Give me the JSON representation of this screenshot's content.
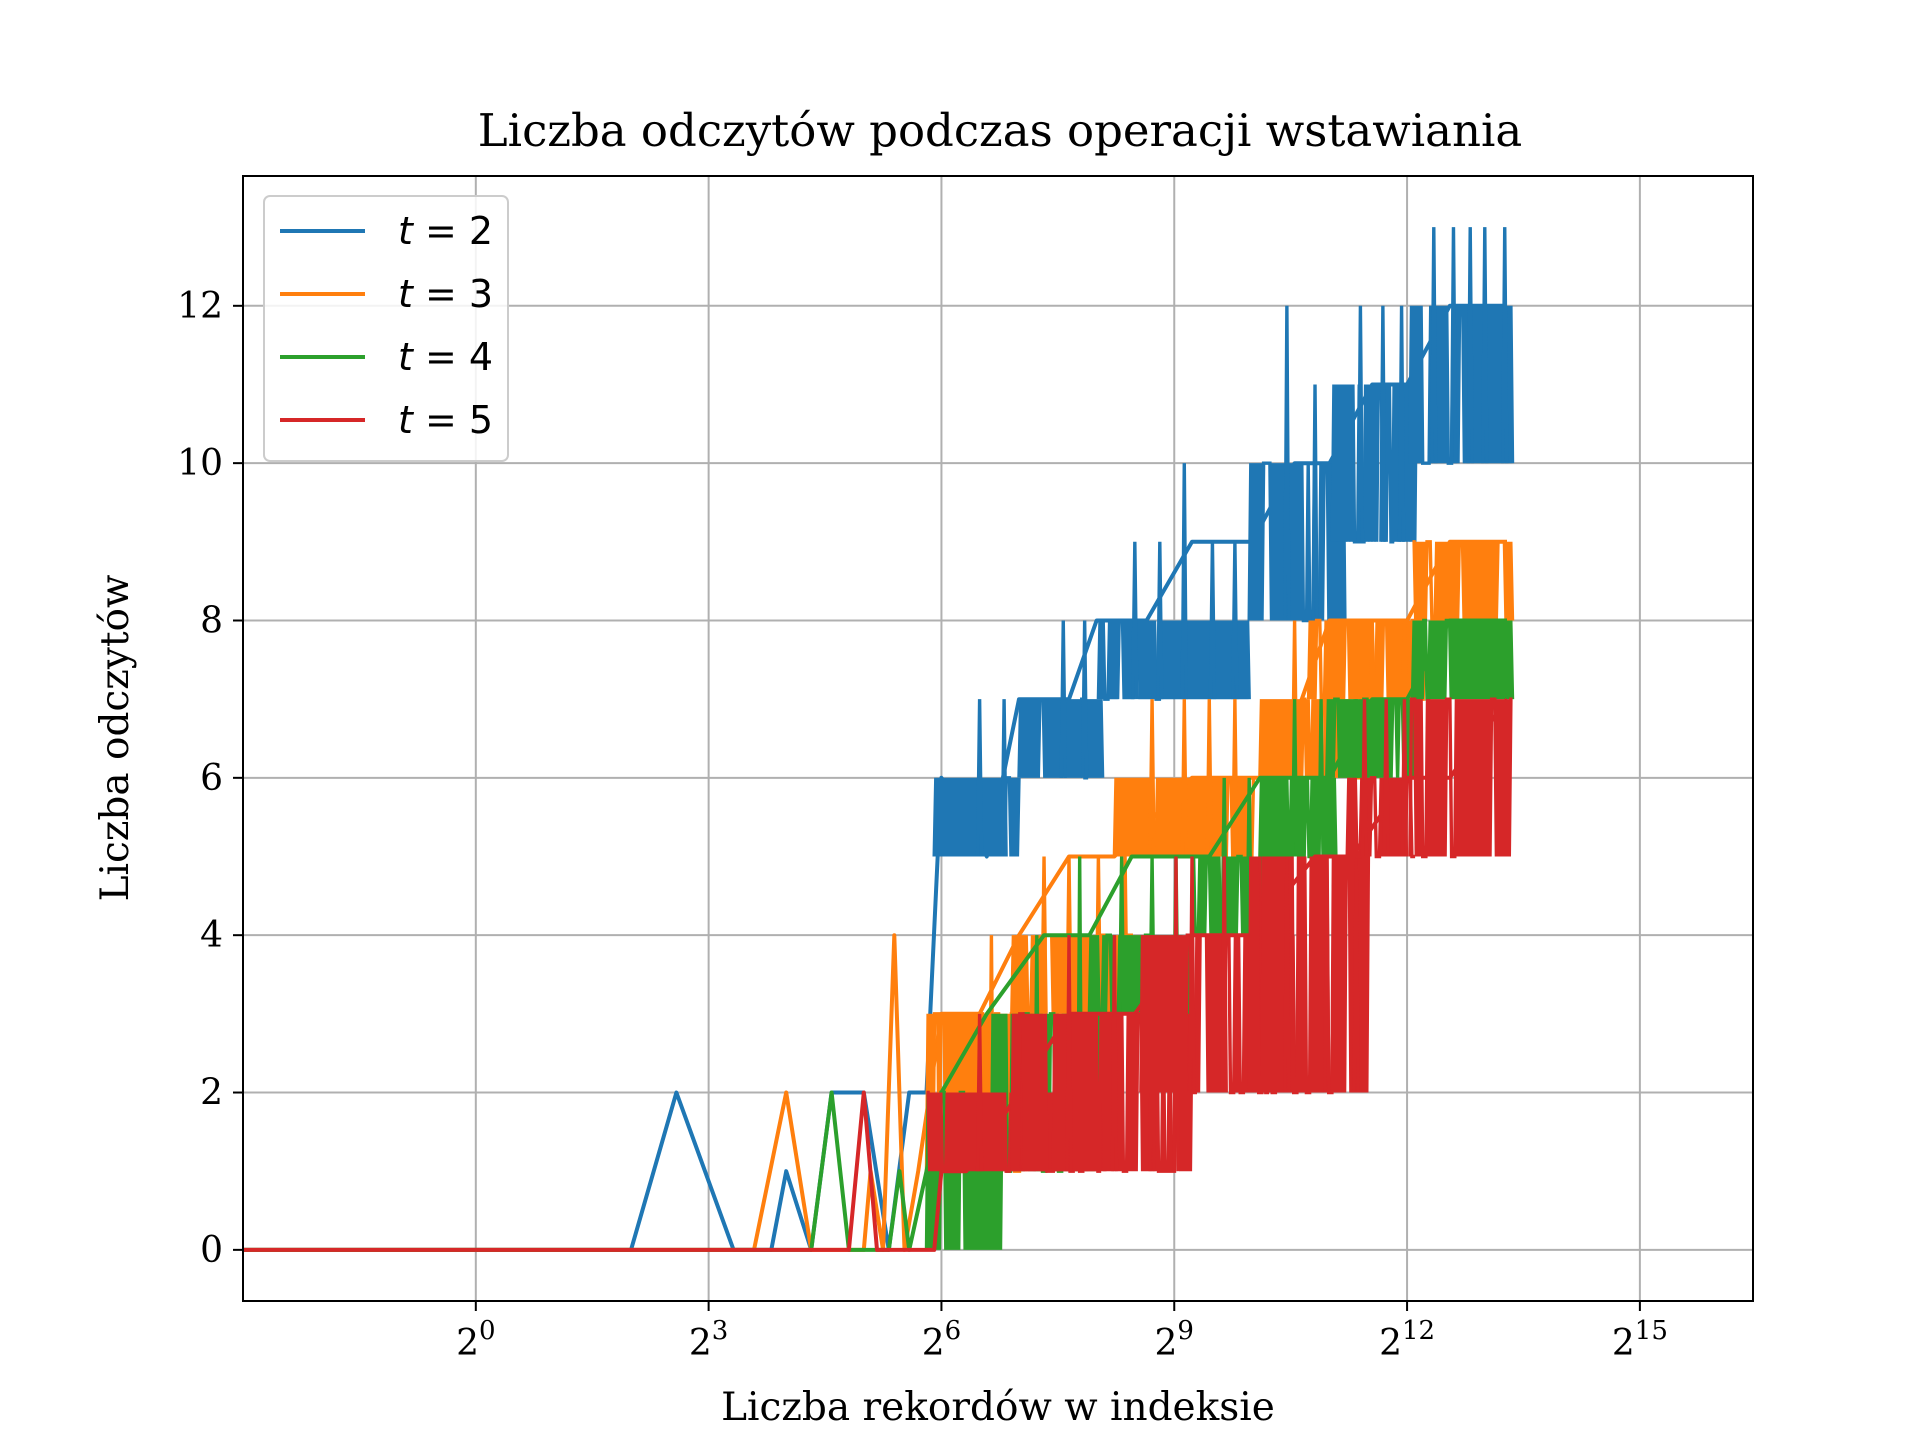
{
  "chart_data": {
    "type": "line",
    "title": "Liczba odczytów podczas operacji wstawiania",
    "xlabel": "Liczba rekordów w indeksie",
    "ylabel": "Liczba odczytów",
    "xscale": "log2",
    "xlim": [
      0.125,
      90000
    ],
    "ylim": [
      -0.65,
      13.65
    ],
    "x_ticks": [
      {
        "value": 1,
        "base": "2",
        "exp": "0"
      },
      {
        "value": 8,
        "base": "2",
        "exp": "3"
      },
      {
        "value": 64,
        "base": "2",
        "exp": "6"
      },
      {
        "value": 512,
        "base": "2",
        "exp": "9"
      },
      {
        "value": 4096,
        "base": "2",
        "exp": "12"
      },
      {
        "value": 32768,
        "base": "2",
        "exp": "15"
      }
    ],
    "y_ticks": [
      0,
      2,
      4,
      6,
      8,
      10,
      12
    ],
    "grid": true,
    "legend_position": "top-left",
    "series": [
      {
        "name": "t = 2",
        "label_var": "t",
        "label_value": "2",
        "color": "#1f77b4",
        "points": [
          [
            0.125,
            0
          ],
          [
            4,
            0
          ],
          [
            6,
            2
          ],
          [
            10,
            0
          ],
          [
            14,
            0
          ],
          [
            16,
            1
          ],
          [
            20,
            0
          ],
          [
            24,
            2
          ],
          [
            32,
            2
          ],
          [
            40,
            0
          ],
          [
            48,
            2
          ],
          [
            56,
            2
          ],
          [
            64,
            6
          ],
          [
            96,
            5
          ],
          [
            128,
            7
          ],
          [
            200,
            7
          ],
          [
            256,
            8
          ],
          [
            400,
            8
          ],
          [
            600,
            9
          ],
          [
            1024,
            9
          ],
          [
            1500,
            10
          ],
          [
            2048,
            10
          ],
          [
            3000,
            11
          ],
          [
            4096,
            11
          ],
          [
            6000,
            12
          ],
          [
            10000,
            12
          ]
        ],
        "bands": [
          {
            "x0": 60,
            "x1": 128,
            "lo": 5,
            "hi": 6,
            "spikes": [
              [
                90,
                7
              ],
              [
                112,
                7
              ]
            ]
          },
          {
            "x0": 128,
            "x1": 270,
            "lo": 6,
            "hi": 7,
            "spikes": [
              [
                190,
                8
              ],
              [
                230,
                8
              ]
            ]
          },
          {
            "x0": 260,
            "x1": 1000,
            "lo": 7,
            "hi": 8,
            "spikes": [
              [
                360,
                9
              ],
              [
                450,
                9
              ],
              [
                560,
                10
              ],
              [
                720,
                9
              ],
              [
                880,
                9
              ]
            ]
          },
          {
            "x0": 1000,
            "x1": 2350,
            "lo": 8,
            "hi": 10,
            "spikes": [
              [
                1400,
                12
              ],
              [
                1800,
                11
              ]
            ]
          },
          {
            "x0": 2100,
            "x1": 4450,
            "lo": 9,
            "hi": 11,
            "spikes": [
              [
                2700,
                12
              ],
              [
                3300,
                12
              ],
              [
                3900,
                12
              ]
            ]
          },
          {
            "x0": 4200,
            "x1": 10500,
            "lo": 10,
            "hi": 12,
            "spikes": [
              [
                5200,
                13
              ],
              [
                6200,
                13
              ],
              [
                7200,
                13
              ],
              [
                8200,
                13
              ],
              [
                9800,
                13
              ]
            ]
          }
        ]
      },
      {
        "name": "t = 3",
        "label_var": "t",
        "label_value": "3",
        "color": "#ff7f0e",
        "points": [
          [
            0.125,
            0
          ],
          [
            12,
            0
          ],
          [
            16,
            2
          ],
          [
            20,
            0
          ],
          [
            32,
            0
          ],
          [
            34,
            1
          ],
          [
            38,
            0
          ],
          [
            42,
            4
          ],
          [
            46,
            0
          ],
          [
            52,
            1
          ],
          [
            64,
            3
          ],
          [
            90,
            3
          ],
          [
            128,
            4
          ],
          [
            200,
            5
          ],
          [
            300,
            5
          ],
          [
            600,
            6
          ],
          [
            1100,
            6
          ],
          [
            1600,
            7
          ],
          [
            2048,
            8
          ],
          [
            4096,
            8
          ],
          [
            6000,
            9
          ],
          [
            10000,
            9
          ]
        ],
        "bands": [
          {
            "x0": 56,
            "x1": 140,
            "lo": 1,
            "hi": 3,
            "spikes": [
              [
                100,
                4
              ],
              [
                125,
                4
              ]
            ]
          },
          {
            "x0": 120,
            "x1": 380,
            "lo": 3,
            "hi": 4,
            "spikes": [
              [
                160,
                5
              ],
              [
                200,
                5
              ],
              [
                260,
                5
              ],
              [
                330,
                5
              ]
            ]
          },
          {
            "x0": 300,
            "x1": 1100,
            "lo": 5,
            "hi": 6,
            "spikes": [
              [
                420,
                7
              ],
              [
                560,
                7
              ],
              [
                700,
                7
              ],
              [
                880,
                7
              ]
            ]
          },
          {
            "x0": 1100,
            "x1": 2800,
            "lo": 6,
            "hi": 7,
            "spikes": [
              [
                1500,
                8
              ],
              [
                2000,
                8
              ]
            ]
          },
          {
            "x0": 1700,
            "x1": 4800,
            "lo": 7,
            "hi": 8,
            "spikes": [
              [
                3000,
                8
              ],
              [
                4000,
                8
              ]
            ]
          },
          {
            "x0": 4300,
            "x1": 10500,
            "lo": 8,
            "hi": 9,
            "spikes": []
          }
        ]
      },
      {
        "name": "t = 4",
        "label_var": "t",
        "label_value": "4",
        "color": "#2ca02c",
        "points": [
          [
            0.125,
            0
          ],
          [
            20,
            0
          ],
          [
            24,
            2
          ],
          [
            28,
            0
          ],
          [
            40,
            0
          ],
          [
            44,
            1
          ],
          [
            48,
            0
          ],
          [
            56,
            1
          ],
          [
            64,
            2
          ],
          [
            96,
            3
          ],
          [
            160,
            4
          ],
          [
            240,
            4
          ],
          [
            350,
            5
          ],
          [
            700,
            5
          ],
          [
            1100,
            6
          ],
          [
            2048,
            6
          ],
          [
            3000,
            7
          ],
          [
            4096,
            7
          ],
          [
            6000,
            8
          ],
          [
            10000,
            8
          ]
        ],
        "bands": [
          {
            "x0": 56,
            "x1": 110,
            "lo": 0,
            "hi": 2,
            "spikes": []
          },
          {
            "x0": 100,
            "x1": 260,
            "lo": 1,
            "hi": 3,
            "spikes": [
              [
                150,
                4
              ],
              [
                220,
                5
              ]
            ]
          },
          {
            "x0": 240,
            "x1": 600,
            "lo": 3,
            "hi": 4,
            "spikes": [
              [
                320,
                5
              ],
              [
                420,
                5
              ],
              [
                520,
                5
              ]
            ]
          },
          {
            "x0": 600,
            "x1": 1150,
            "lo": 4,
            "hi": 5,
            "spikes": [
              [
                800,
                6
              ],
              [
                1000,
                6
              ]
            ]
          },
          {
            "x0": 1100,
            "x1": 2200,
            "lo": 5,
            "hi": 6,
            "spikes": [
              [
                1500,
                7
              ],
              [
                1900,
                7
              ]
            ]
          },
          {
            "x0": 2000,
            "x1": 4600,
            "lo": 6,
            "hi": 7,
            "spikes": [
              [
                2600,
                7
              ],
              [
                3400,
                7
              ]
            ]
          },
          {
            "x0": 4300,
            "x1": 10500,
            "lo": 7,
            "hi": 8,
            "spikes": []
          }
        ]
      },
      {
        "name": "t = 5",
        "label_var": "t",
        "label_value": "5",
        "color": "#d62728",
        "points": [
          [
            0.125,
            0
          ],
          [
            28,
            0
          ],
          [
            32,
            2
          ],
          [
            36,
            0
          ],
          [
            60,
            0
          ],
          [
            64,
            1
          ],
          [
            80,
            1
          ],
          [
            128,
            2
          ],
          [
            200,
            3
          ],
          [
            360,
            3
          ],
          [
            600,
            4
          ],
          [
            1024,
            4
          ],
          [
            1800,
            5
          ],
          [
            2500,
            5
          ],
          [
            4096,
            6
          ],
          [
            6000,
            6
          ],
          [
            10000,
            7
          ]
        ],
        "bands": [
          {
            "x0": 56,
            "x1": 280,
            "lo": 1,
            "hi": 2,
            "spikes": [
              [
                90,
                3
              ],
              [
                130,
                3
              ],
              [
                180,
                3
              ],
              [
                230,
                3
              ]
            ]
          },
          {
            "x0": 120,
            "x1": 600,
            "lo": 1,
            "hi": 3,
            "spikes": [
              [
                200,
                4
              ],
              [
                300,
                4
              ],
              [
                420,
                4
              ],
              [
                520,
                5
              ]
            ]
          },
          {
            "x0": 380,
            "x1": 1500,
            "lo": 2,
            "hi": 4,
            "spikes": [
              [
                600,
                5
              ],
              [
                800,
                5
              ],
              [
                1100,
                5
              ],
              [
                1400,
                5
              ]
            ]
          },
          {
            "x0": 1000,
            "x1": 2900,
            "lo": 2,
            "hi": 5,
            "spikes": [
              [
                1400,
                5
              ],
              [
                2000,
                5
              ],
              [
                2600,
                5
              ]
            ]
          },
          {
            "x0": 2400,
            "x1": 4400,
            "lo": 5,
            "hi": 6,
            "spikes": [
              [
                2800,
                7
              ],
              [
                3400,
                7
              ],
              [
                4000,
                7
              ]
            ]
          },
          {
            "x0": 4200,
            "x1": 10500,
            "lo": 5,
            "hi": 7,
            "spikes": []
          }
        ]
      }
    ]
  }
}
